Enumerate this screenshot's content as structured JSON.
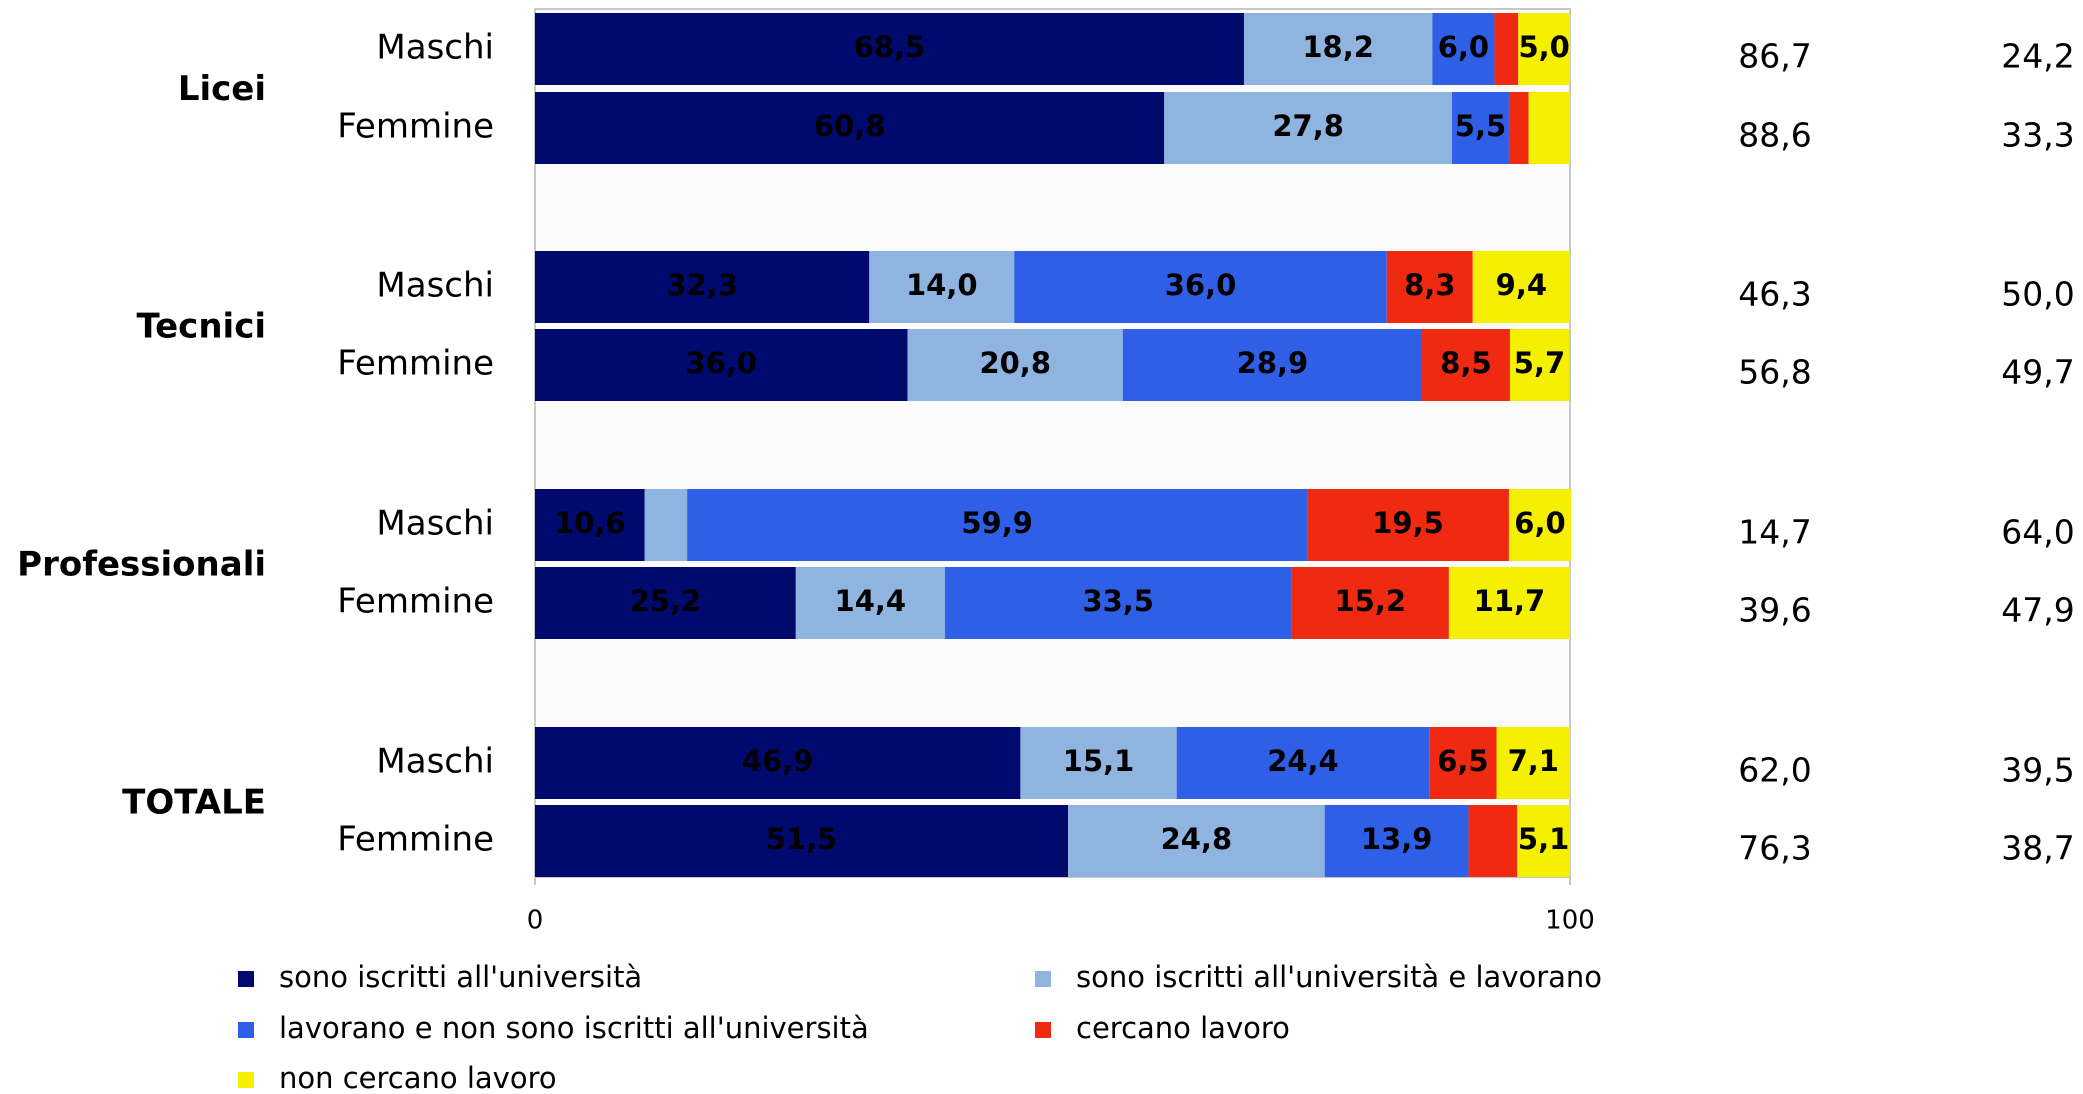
{
  "chart_data": {
    "type": "stacked_barh",
    "groups": [
      "Licei",
      "Tecnici",
      "Professionali",
      "TOTALE"
    ],
    "categories": [
      "Maschi",
      "Femmine",
      "Maschi",
      "Femmine",
      "Maschi",
      "Femmine",
      "Maschi",
      "Femmine"
    ],
    "xlim": [
      0,
      100
    ],
    "xticks": [
      0,
      100
    ],
    "series": [
      {
        "name": "sono iscritti all'università",
        "color": "#000a6e",
        "label_color": "#ffffff",
        "values": [
          68.5,
          60.8,
          32.3,
          36.0,
          10.6,
          25.2,
          46.9,
          51.5
        ],
        "value_labels": [
          "68,5",
          "60,8",
          "32,3",
          "36,0",
          "10,6",
          "25,2",
          "46,9",
          "51,5"
        ]
      },
      {
        "name": "sono iscritti all'università e lavorano",
        "color": "#8fb4e0",
        "label_color": "#ffffff",
        "values": [
          18.2,
          27.8,
          14.0,
          20.8,
          4.1,
          14.4,
          15.1,
          24.8
        ],
        "value_labels": [
          "18,2",
          "27,8",
          "14,0",
          "20,8",
          null,
          "14,4",
          "15,1",
          "24,8"
        ]
      },
      {
        "name": "lavorano e non sono iscritti all'università",
        "color": "#2f5fe6",
        "label_color": "#ffffff",
        "values": [
          6.0,
          5.5,
          36.0,
          28.9,
          59.9,
          33.5,
          24.4,
          13.9
        ],
        "value_labels": [
          "6,0",
          "5,5",
          "36,0",
          "28,9",
          "59,9",
          "33,5",
          "24,4",
          "13,9"
        ]
      },
      {
        "name": "cercano lavoro",
        "color": "#f02a10",
        "label_color": "#ffffff",
        "values": [
          2.3,
          1.9,
          8.3,
          8.5,
          19.5,
          15.2,
          6.5,
          4.7
        ],
        "value_labels": [
          null,
          null,
          "8,3",
          "8,5",
          "19,5",
          "15,2",
          "6,5",
          null
        ]
      },
      {
        "name": "non cercano lavoro",
        "color": "#f5f000",
        "label_color": "#000000",
        "values": [
          5.0,
          4.0,
          9.4,
          5.7,
          6.0,
          11.7,
          7.1,
          5.1
        ],
        "value_labels": [
          "5,0",
          null,
          "9,4",
          "5,7",
          "6,0",
          "11,7",
          "7,1",
          "5,1"
        ]
      }
    ],
    "side_columns": [
      {
        "values": [
          86.7,
          88.6,
          46.3,
          56.8,
          14.7,
          39.6,
          62.0,
          76.3
        ],
        "value_labels": [
          "86,7",
          "88,6",
          "46,3",
          "56,8",
          "14,7",
          "39,6",
          "62,0",
          "76,3"
        ]
      },
      {
        "values": [
          24.2,
          33.3,
          50.0,
          49.7,
          64.0,
          47.9,
          39.5,
          38.7
        ],
        "value_labels": [
          "24,2",
          "33,3",
          "50,0",
          "49,7",
          "64,0",
          "47,9",
          "39,5",
          "38,7"
        ]
      }
    ],
    "legend": "bottom"
  }
}
